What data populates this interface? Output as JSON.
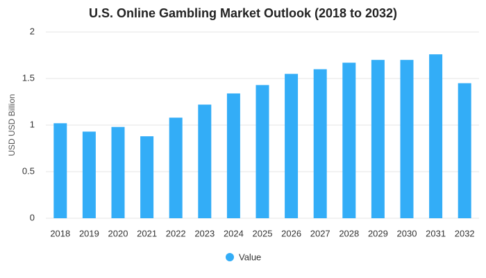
{
  "chart_data": {
    "type": "bar",
    "title": "U.S. Online Gambling Market Outlook (2018 to 2032)",
    "y_label": "USD USD Billion",
    "categories": [
      "2018",
      "2019",
      "2020",
      "2021",
      "2022",
      "2023",
      "2024",
      "2025",
      "2026",
      "2027",
      "2028",
      "2029",
      "2030",
      "2031",
      "2032"
    ],
    "series": [
      {
        "name": "Value",
        "color": "#33adf7",
        "values": [
          1.02,
          0.93,
          0.98,
          0.88,
          1.08,
          1.22,
          1.34,
          1.43,
          1.55,
          1.6,
          1.67,
          1.7,
          1.7,
          1.76,
          1.45
        ]
      }
    ],
    "ylim": [
      0,
      2
    ],
    "yticks": [
      0,
      0.5,
      1,
      1.5,
      2
    ],
    "grid": true,
    "legend": "bottom"
  }
}
